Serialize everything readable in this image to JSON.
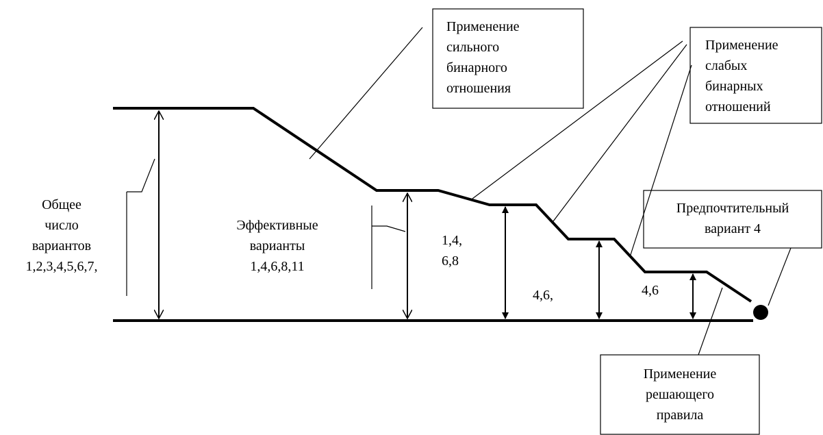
{
  "boxes": [
    {
      "lines": [
        "Применение",
        "сильного",
        "бинарного",
        "отношения"
      ]
    },
    {
      "lines": [
        "Применение",
        "слабых",
        "бинарных",
        "отношений"
      ]
    },
    {
      "lines": [
        "Предпочтительный",
        "вариант 4"
      ]
    },
    {
      "lines": [
        "Применение",
        "решающего",
        "правила"
      ]
    }
  ],
  "labels": [
    {
      "lines": [
        "Общее",
        "число",
        "вариантов",
        "1,2,3,4,5,6,7,"
      ]
    },
    {
      "lines": [
        "Эффективные",
        "варианты",
        "1,4,6,8,11"
      ]
    },
    {
      "lines": [
        "1,4,",
        "6,8"
      ]
    },
    {
      "lines": [
        "4,6,"
      ]
    },
    {
      "lines": [
        "4,6"
      ]
    }
  ]
}
